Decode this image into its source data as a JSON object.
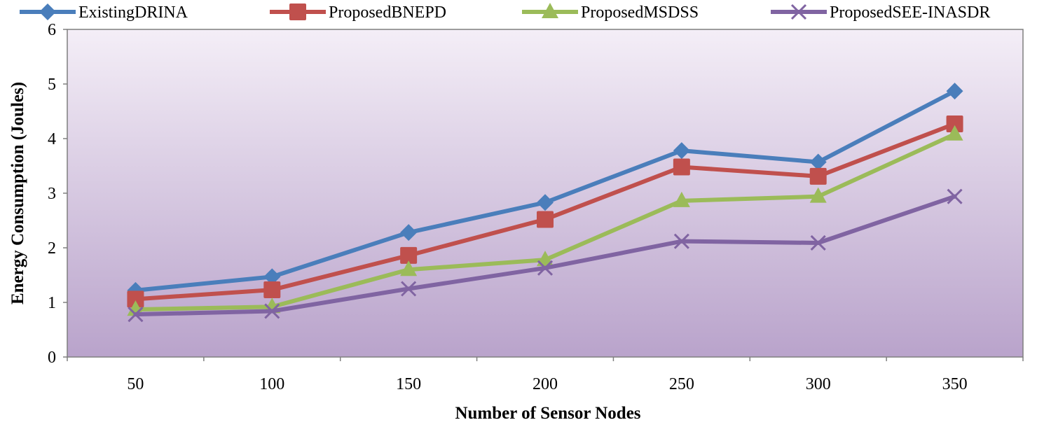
{
  "chart_data": {
    "type": "line",
    "title": "",
    "xlabel": "Number of Sensor Nodes",
    "ylabel": "Energy Consumption (Joules)",
    "categories": [
      "50",
      "100",
      "150",
      "200",
      "250",
      "300",
      "350"
    ],
    "ylim": [
      0,
      6
    ],
    "yticks": [
      "0",
      "1",
      "2",
      "3",
      "4",
      "5",
      "6"
    ],
    "legend_position": "top",
    "plot_background": [
      "#f4eef7",
      "#b9a3cb"
    ],
    "series": [
      {
        "name": "ExistingDRINA",
        "color": "#4a7ebb",
        "marker": "diamond",
        "values": [
          1.22,
          1.47,
          2.28,
          2.83,
          3.78,
          3.57,
          4.87
        ]
      },
      {
        "name": "ProposedBNEPD",
        "color": "#c0504d",
        "marker": "square",
        "values": [
          1.06,
          1.23,
          1.86,
          2.52,
          3.48,
          3.31,
          4.27
        ]
      },
      {
        "name": "ProposedMSDSS",
        "color": "#9bbb59",
        "marker": "triangle",
        "values": [
          0.87,
          0.92,
          1.6,
          1.78,
          2.86,
          2.94,
          4.08
        ]
      },
      {
        "name": "ProposedSEE-INASDR",
        "color": "#8064a2",
        "marker": "x",
        "values": [
          0.78,
          0.84,
          1.25,
          1.63,
          2.12,
          2.09,
          2.94
        ]
      }
    ]
  }
}
